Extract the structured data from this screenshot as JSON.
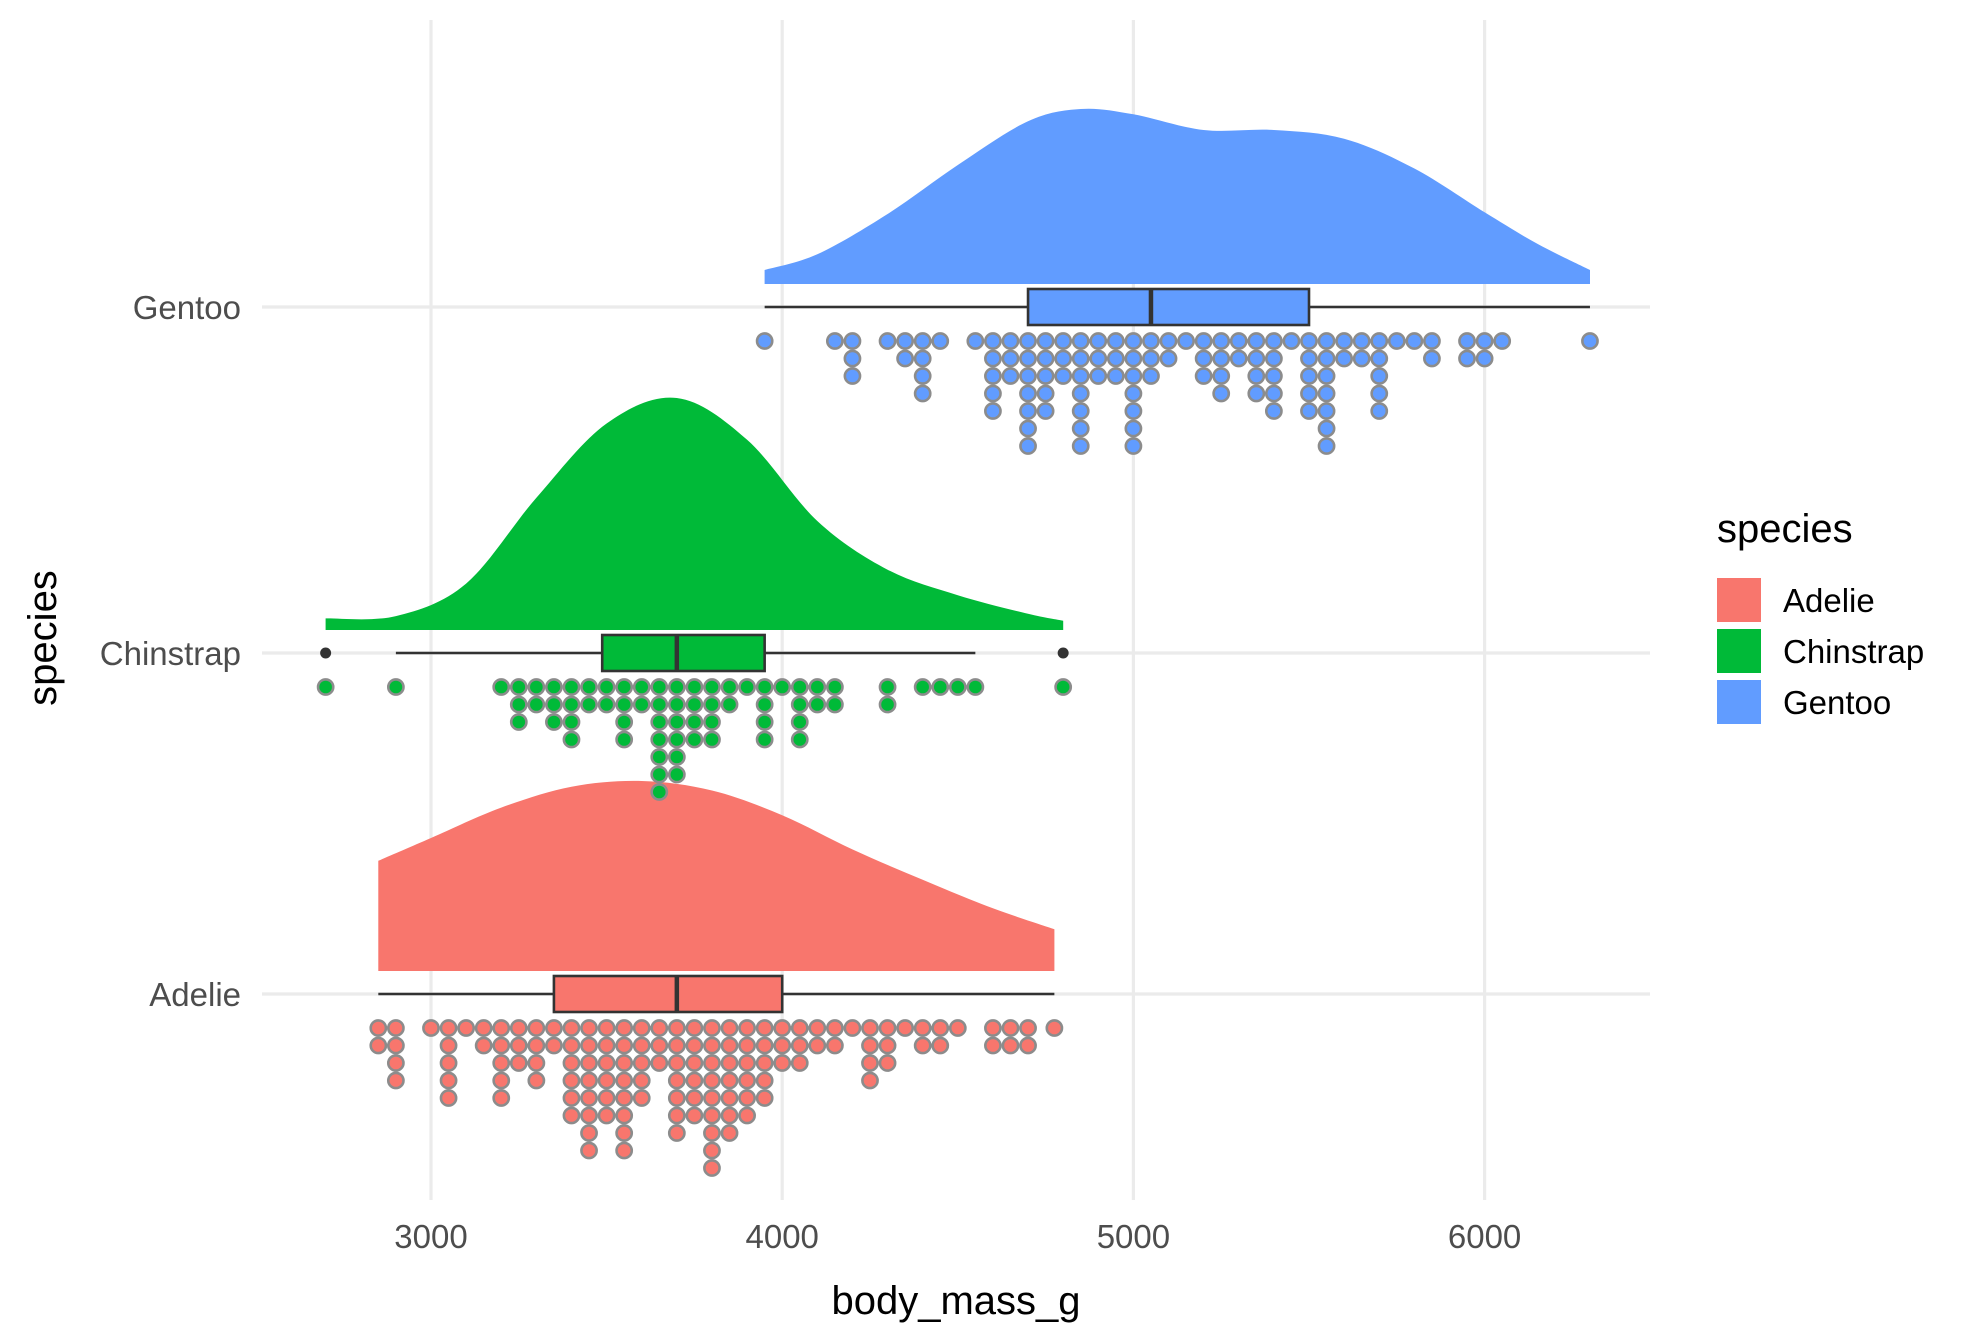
{
  "chart_data": {
    "type": "raincloud",
    "orientation": "horizontal",
    "xlabel": "body_mass_g",
    "ylabel": "species",
    "xlim": [
      2500,
      6500
    ],
    "x_ticks": [
      "3000",
      "4000",
      "5000",
      "6000"
    ],
    "x_tick_values": [
      3000,
      4000,
      5000,
      6000
    ],
    "grid": true,
    "legend": {
      "title": "species",
      "placement": "right",
      "entries": [
        "Adelie",
        "Chinstrap",
        "Gentoo"
      ]
    },
    "colors": {
      "Adelie": "#F8766D",
      "Chinstrap": "#00BA38",
      "Gentoo": "#619CFF"
    },
    "series": [
      {
        "name": "Adelie",
        "box": {
          "min": 2850,
          "q1": 3350,
          "median": 3700,
          "q3": 4000,
          "max": 4775
        },
        "outliers": [],
        "density": {
          "x": [
            2850,
            3000,
            3200,
            3400,
            3600,
            3800,
            4000,
            4200,
            4400,
            4600,
            4775
          ],
          "y": [
            0.58,
            0.7,
            0.86,
            0.97,
            1.0,
            0.95,
            0.82,
            0.64,
            0.48,
            0.33,
            0.22
          ]
        },
        "dots": [
          {
            "x": 2850,
            "n": 2
          },
          {
            "x": 2900,
            "n": 4
          },
          {
            "x": 3000,
            "n": 1
          },
          {
            "x": 3050,
            "n": 5
          },
          {
            "x": 3100,
            "n": 1
          },
          {
            "x": 3150,
            "n": 2
          },
          {
            "x": 3200,
            "n": 5
          },
          {
            "x": 3250,
            "n": 3
          },
          {
            "x": 3300,
            "n": 4
          },
          {
            "x": 3350,
            "n": 2
          },
          {
            "x": 3400,
            "n": 6
          },
          {
            "x": 3450,
            "n": 8
          },
          {
            "x": 3500,
            "n": 6
          },
          {
            "x": 3550,
            "n": 8
          },
          {
            "x": 3600,
            "n": 5
          },
          {
            "x": 3650,
            "n": 3
          },
          {
            "x": 3700,
            "n": 7
          },
          {
            "x": 3750,
            "n": 6
          },
          {
            "x": 3800,
            "n": 9
          },
          {
            "x": 3850,
            "n": 7
          },
          {
            "x": 3900,
            "n": 6
          },
          {
            "x": 3950,
            "n": 5
          },
          {
            "x": 4000,
            "n": 3
          },
          {
            "x": 4050,
            "n": 3
          },
          {
            "x": 4100,
            "n": 2
          },
          {
            "x": 4150,
            "n": 2
          },
          {
            "x": 4200,
            "n": 1
          },
          {
            "x": 4250,
            "n": 4
          },
          {
            "x": 4300,
            "n": 3
          },
          {
            "x": 4350,
            "n": 1
          },
          {
            "x": 4400,
            "n": 2
          },
          {
            "x": 4450,
            "n": 2
          },
          {
            "x": 4500,
            "n": 1
          },
          {
            "x": 4600,
            "n": 2
          },
          {
            "x": 4650,
            "n": 2
          },
          {
            "x": 4700,
            "n": 2
          },
          {
            "x": 4775,
            "n": 1
          }
        ]
      },
      {
        "name": "Chinstrap",
        "box": {
          "min": 2900,
          "q1": 3487.5,
          "median": 3700,
          "q3": 3950,
          "max": 4550
        },
        "outliers": [
          2700,
          4800
        ],
        "density": {
          "x": [
            2700,
            2900,
            3100,
            3300,
            3500,
            3700,
            3900,
            4100,
            4300,
            4500,
            4700,
            4800
          ],
          "y": [
            0.05,
            0.06,
            0.2,
            0.57,
            0.89,
            1.0,
            0.82,
            0.47,
            0.26,
            0.15,
            0.07,
            0.04
          ]
        },
        "dots": [
          {
            "x": 2700,
            "n": 1
          },
          {
            "x": 2900,
            "n": 1
          },
          {
            "x": 3200,
            "n": 1
          },
          {
            "x": 3250,
            "n": 3
          },
          {
            "x": 3300,
            "n": 2
          },
          {
            "x": 3350,
            "n": 3
          },
          {
            "x": 3400,
            "n": 4
          },
          {
            "x": 3450,
            "n": 2
          },
          {
            "x": 3500,
            "n": 2
          },
          {
            "x": 3550,
            "n": 4
          },
          {
            "x": 3600,
            "n": 2
          },
          {
            "x": 3650,
            "n": 7
          },
          {
            "x": 3700,
            "n": 6
          },
          {
            "x": 3750,
            "n": 4
          },
          {
            "x": 3800,
            "n": 4
          },
          {
            "x": 3850,
            "n": 2
          },
          {
            "x": 3900,
            "n": 1
          },
          {
            "x": 3950,
            "n": 4
          },
          {
            "x": 4000,
            "n": 1
          },
          {
            "x": 4050,
            "n": 4
          },
          {
            "x": 4100,
            "n": 2
          },
          {
            "x": 4150,
            "n": 2
          },
          {
            "x": 4300,
            "n": 2
          },
          {
            "x": 4400,
            "n": 1
          },
          {
            "x": 4450,
            "n": 1
          },
          {
            "x": 4500,
            "n": 1
          },
          {
            "x": 4550,
            "n": 1
          },
          {
            "x": 4800,
            "n": 1
          }
        ]
      },
      {
        "name": "Gentoo",
        "box": {
          "min": 3950,
          "q1": 4700,
          "median": 5050,
          "q3": 5500,
          "max": 6300
        },
        "outliers": [],
        "density": {
          "x": [
            3950,
            4100,
            4300,
            4500,
            4700,
            4850,
            5000,
            5200,
            5400,
            5600,
            5800,
            6000,
            6150,
            6300
          ],
          "y": [
            0.08,
            0.17,
            0.4,
            0.68,
            0.93,
            1.0,
            0.97,
            0.88,
            0.88,
            0.83,
            0.66,
            0.41,
            0.23,
            0.08
          ]
        },
        "dots": [
          {
            "x": 3950,
            "n": 1
          },
          {
            "x": 4150,
            "n": 1
          },
          {
            "x": 4200,
            "n": 3
          },
          {
            "x": 4300,
            "n": 1
          },
          {
            "x": 4350,
            "n": 2
          },
          {
            "x": 4400,
            "n": 4
          },
          {
            "x": 4450,
            "n": 1
          },
          {
            "x": 4550,
            "n": 1
          },
          {
            "x": 4600,
            "n": 5
          },
          {
            "x": 4650,
            "n": 3
          },
          {
            "x": 4700,
            "n": 7
          },
          {
            "x": 4750,
            "n": 5
          },
          {
            "x": 4800,
            "n": 3
          },
          {
            "x": 4850,
            "n": 7
          },
          {
            "x": 4900,
            "n": 3
          },
          {
            "x": 4950,
            "n": 3
          },
          {
            "x": 5000,
            "n": 7
          },
          {
            "x": 5050,
            "n": 3
          },
          {
            "x": 5100,
            "n": 2
          },
          {
            "x": 5150,
            "n": 1
          },
          {
            "x": 5200,
            "n": 3
          },
          {
            "x": 5250,
            "n": 4
          },
          {
            "x": 5300,
            "n": 2
          },
          {
            "x": 5350,
            "n": 4
          },
          {
            "x": 5400,
            "n": 5
          },
          {
            "x": 5450,
            "n": 1
          },
          {
            "x": 5500,
            "n": 5
          },
          {
            "x": 5550,
            "n": 7
          },
          {
            "x": 5600,
            "n": 2
          },
          {
            "x": 5650,
            "n": 2
          },
          {
            "x": 5700,
            "n": 5
          },
          {
            "x": 5750,
            "n": 1
          },
          {
            "x": 5800,
            "n": 1
          },
          {
            "x": 5850,
            "n": 2
          },
          {
            "x": 5950,
            "n": 2
          },
          {
            "x": 6000,
            "n": 2
          },
          {
            "x": 6050,
            "n": 1
          },
          {
            "x": 6300,
            "n": 1
          }
        ]
      }
    ]
  }
}
